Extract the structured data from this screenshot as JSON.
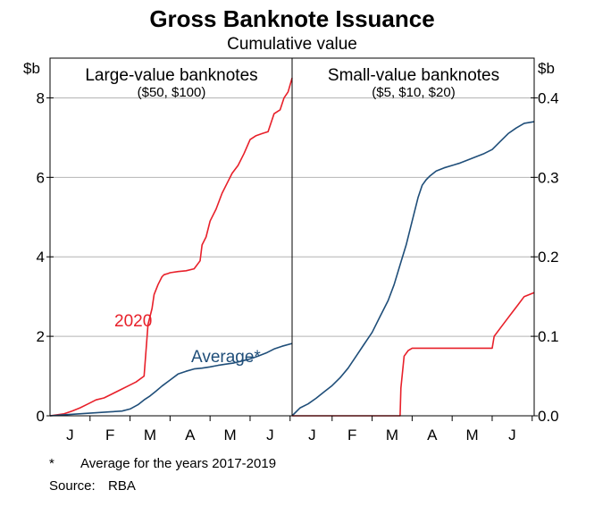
{
  "title": "Gross Banknote Issuance",
  "subtitle": "Cumulative value",
  "left_unit": "$b",
  "right_unit": "$b",
  "footnote_marker": "*",
  "footnote_text": "Average for the years 2017-2019",
  "source_label": "Source:",
  "source_value": "RBA",
  "colors": {
    "series_2020": "#e8202a",
    "series_average": "#1f4e79",
    "grid": "#b4b4b4",
    "frame": "#000000"
  },
  "chart_data": [
    {
      "type": "line",
      "title": "Large-value banknotes",
      "subtitle": "($50, $100)",
      "ylabel": "$b",
      "ylim": [
        0,
        9
      ],
      "yticks": [
        0,
        2,
        4,
        6,
        8
      ],
      "ytick_labels": [
        "0",
        "2",
        "4",
        "6",
        "8"
      ],
      "xlim": [
        0,
        6.05
      ],
      "xticks": [
        0.5,
        1.5,
        2.5,
        3.5,
        4.5,
        5.5
      ],
      "xtick_labels": [
        "J",
        "F",
        "M",
        "A",
        "M",
        "J"
      ],
      "grid": true,
      "annotations": [
        {
          "text": "2020",
          "series": "2020"
        },
        {
          "text": "Average*",
          "series": "Average"
        }
      ],
      "series": [
        {
          "name": "2020",
          "x": [
            0,
            0.35,
            0.55,
            0.75,
            0.95,
            1.15,
            1.35,
            1.55,
            1.75,
            1.95,
            2.15,
            2.35,
            2.45,
            2.55,
            2.6,
            2.7,
            2.8,
            2.85,
            2.95,
            3.0,
            3.2,
            3.4,
            3.6,
            3.75,
            3.8,
            3.9,
            4.0,
            4.15,
            4.3,
            4.45,
            4.55,
            4.7,
            4.85,
            5.0,
            5.15,
            5.3,
            5.45,
            5.6,
            5.75,
            5.85,
            5.95,
            6.05
          ],
          "y": [
            0.0,
            0.05,
            0.12,
            0.2,
            0.3,
            0.4,
            0.45,
            0.55,
            0.65,
            0.75,
            0.85,
            1.0,
            2.3,
            2.7,
            3.05,
            3.3,
            3.5,
            3.55,
            3.58,
            3.6,
            3.63,
            3.65,
            3.7,
            3.9,
            4.3,
            4.5,
            4.9,
            5.2,
            5.6,
            5.9,
            6.1,
            6.3,
            6.6,
            6.95,
            7.05,
            7.1,
            7.15,
            7.6,
            7.7,
            8.0,
            8.15,
            8.5
          ]
        },
        {
          "name": "Average",
          "x": [
            0,
            0.3,
            0.6,
            0.9,
            1.2,
            1.5,
            1.8,
            2.0,
            2.2,
            2.35,
            2.5,
            2.65,
            2.8,
            3.0,
            3.2,
            3.4,
            3.6,
            3.8,
            4.0,
            4.2,
            4.4,
            4.6,
            4.8,
            5.0,
            5.2,
            5.4,
            5.6,
            5.8,
            6.05
          ],
          "y": [
            0.0,
            0.02,
            0.04,
            0.06,
            0.08,
            0.1,
            0.12,
            0.17,
            0.28,
            0.4,
            0.5,
            0.62,
            0.75,
            0.9,
            1.05,
            1.12,
            1.18,
            1.2,
            1.23,
            1.27,
            1.3,
            1.33,
            1.38,
            1.43,
            1.5,
            1.58,
            1.68,
            1.75,
            1.82
          ]
        }
      ]
    },
    {
      "type": "line",
      "title": "Small-value banknotes",
      "subtitle": "($5, $10, $20)",
      "ylabel": "$b",
      "ylim": [
        0,
        0.45
      ],
      "yticks": [
        0,
        0.1,
        0.2,
        0.3,
        0.4
      ],
      "ytick_labels": [
        "0.0",
        "0.1",
        "0.2",
        "0.3",
        "0.4"
      ],
      "xlim": [
        0,
        6.05
      ],
      "xticks": [
        0.5,
        1.5,
        2.5,
        3.5,
        4.5,
        5.5
      ],
      "xtick_labels": [
        "J",
        "F",
        "M",
        "A",
        "M",
        "J"
      ],
      "grid": true,
      "series": [
        {
          "name": "Average",
          "x": [
            0,
            0.2,
            0.4,
            0.6,
            0.8,
            1.0,
            1.2,
            1.4,
            1.6,
            1.8,
            2.0,
            2.2,
            2.4,
            2.55,
            2.7,
            2.85,
            3.0,
            3.15,
            3.25,
            3.35,
            3.45,
            3.6,
            3.8,
            4.0,
            4.2,
            4.4,
            4.6,
            4.8,
            5.0,
            5.2,
            5.4,
            5.6,
            5.8,
            6.05
          ],
          "y": [
            0.0,
            0.01,
            0.015,
            0.022,
            0.03,
            0.038,
            0.048,
            0.06,
            0.075,
            0.09,
            0.105,
            0.125,
            0.145,
            0.165,
            0.19,
            0.215,
            0.245,
            0.275,
            0.29,
            0.297,
            0.302,
            0.308,
            0.312,
            0.315,
            0.318,
            0.322,
            0.326,
            0.33,
            0.335,
            0.345,
            0.355,
            0.362,
            0.368,
            0.37
          ]
        },
        {
          "name": "2020",
          "x": [
            0,
            2.7,
            2.72,
            2.8,
            2.9,
            3.0,
            3.1,
            3.2,
            3.6,
            4.0,
            4.4,
            4.8,
            5.0,
            5.05,
            5.2,
            5.35,
            5.5,
            5.65,
            5.8,
            6.05
          ],
          "y": [
            0.0,
            0.0,
            0.035,
            0.075,
            0.082,
            0.085,
            0.085,
            0.085,
            0.085,
            0.085,
            0.085,
            0.085,
            0.085,
            0.1,
            0.11,
            0.12,
            0.13,
            0.14,
            0.15,
            0.155
          ]
        }
      ]
    }
  ]
}
